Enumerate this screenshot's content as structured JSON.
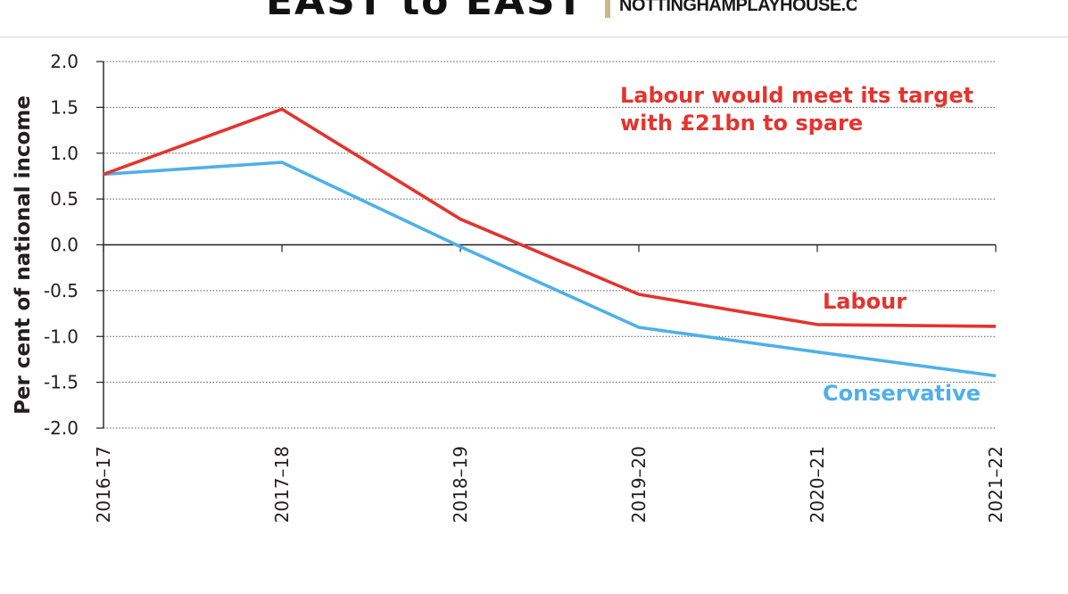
{
  "banner": {
    "logo_text": "EAST to EAST",
    "url_text": "NOTTINGHAMPLAYHOUSE.CO.UK"
  },
  "chart_data": {
    "type": "line",
    "title": "",
    "xlabel": "",
    "ylabel": "Per cent of national income",
    "categories": [
      "2016–17",
      "2017–18",
      "2018–19",
      "2019–20",
      "2020–21",
      "2021–22"
    ],
    "y_ticks": [
      "2.0",
      "1.5",
      "1.0",
      "0.5",
      "0.0",
      "-0.5",
      "-1.0",
      "-1.5",
      "-2.0"
    ],
    "ylim": [
      -2.0,
      2.0
    ],
    "grid": "horizontal dotted",
    "series": [
      {
        "name": "Labour",
        "color": "#e3342f",
        "values": [
          0.77,
          1.48,
          0.28,
          -0.54,
          -0.87,
          -0.89
        ]
      },
      {
        "name": "Conservative",
        "color": "#4fb0e8",
        "values": [
          0.77,
          0.9,
          -0.02,
          -0.9,
          -1.17,
          -1.43
        ]
      }
    ],
    "annotations": [
      {
        "text_lines": [
          "Labour would meet its target",
          "with £21bn to spare"
        ],
        "color": "#e3342f"
      }
    ]
  }
}
